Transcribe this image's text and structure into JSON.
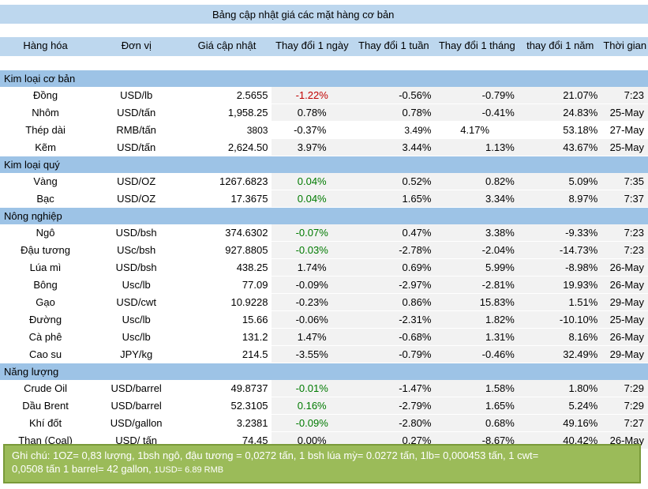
{
  "title": "Bảng cập nhật giá các mặt hàng cơ bản",
  "headers": [
    "Hàng hóa",
    "Đơn vị",
    "Giá cập nhật",
    "Thay đổi 1 ngày",
    "Thay đổi 1 tuần",
    "Thay đổi 1 tháng",
    "thay đổi 1 năm",
    "Thời gian"
  ],
  "sections": [
    {
      "name": "Kim loại cơ bản",
      "rows": [
        [
          "Đồng",
          "USD/lb",
          "2.5655",
          "-1.22%",
          "-0.56%",
          "-0.79%",
          "21.07%",
          "7:23"
        ],
        [
          "Nhôm",
          "USD/tấn",
          "1,958.25",
          "0.78%",
          "0.78%",
          "-0.41%",
          "24.83%",
          "25-May"
        ],
        [
          "Thép dài",
          "RMB/tấn",
          "3803",
          "-0.37%",
          "3.49%",
          "4.17%",
          "53.18%",
          "27-May"
        ],
        [
          "Kẽm",
          "USD/tấn",
          "2,624.50",
          "3.97%",
          "3.44%",
          "1.13%",
          "43.67%",
          "25-May"
        ]
      ]
    },
    {
      "name": "Kim loại quý",
      "rows": [
        [
          "Vàng",
          "USD/OZ",
          "1267.6823",
          "0.04%",
          "0.52%",
          "0.82%",
          "5.09%",
          "7:35"
        ],
        [
          "Bạc",
          "USD/OZ",
          "17.3675",
          "0.04%",
          "1.65%",
          "3.34%",
          "8.97%",
          "7:37"
        ]
      ]
    },
    {
      "name": "Nông nghiệp",
      "rows": [
        [
          "Ngô",
          "USD/bsh",
          "374.6302",
          "-0.07%",
          "0.47%",
          "3.38%",
          "-9.33%",
          "7:23"
        ],
        [
          "Đậu tương",
          "USc/bsh",
          "927.8805",
          "-0.03%",
          "-2.78%",
          "-2.04%",
          "-14.73%",
          "7:23"
        ],
        [
          "Lúa mì",
          "USD/bsh",
          "438.25",
          "1.74%",
          "0.69%",
          "5.99%",
          "-8.98%",
          "26-May"
        ],
        [
          "Bông",
          "Usc/lb",
          "77.09",
          "-0.09%",
          "-2.97%",
          "-2.81%",
          "19.93%",
          "26-May"
        ],
        [
          "Gạo",
          "USD/cwt",
          "10.9228",
          "-0.23%",
          "0.86%",
          "15.83%",
          "1.51%",
          "29-May"
        ],
        [
          "Đường",
          "Usc/lb",
          "15.66",
          "-0.06%",
          "-2.31%",
          "1.82%",
          "-10.10%",
          "25-May"
        ],
        [
          "Cà phê",
          "Usc/lb",
          "131.2",
          "1.47%",
          "-0.68%",
          "1.31%",
          "8.16%",
          "26-May"
        ],
        [
          "Cao su",
          "JPY/kg",
          "214.5",
          "-3.55%",
          "-0.79%",
          "-0.46%",
          "32.49%",
          "29-May"
        ]
      ]
    },
    {
      "name": "Năng lượng",
      "rows": [
        [
          "Crude Oil",
          "USD/barrel",
          "49.8737",
          "-0.01%",
          "-1.47%",
          "1.58%",
          "1.80%",
          "7:29"
        ],
        [
          "Dầu Brent",
          "USD/barrel",
          "52.3105",
          "0.16%",
          "-2.79%",
          "1.65%",
          "5.24%",
          "7:29"
        ],
        [
          "Khí đốt",
          "USD/gallon",
          "3.2381",
          "-0.09%",
          "-2.80%",
          "0.68%",
          "49.16%",
          "7:27"
        ],
        [
          "Than (Coal)",
          "USD/ tấn",
          "74.45",
          "0.00%",
          "0.27%",
          "-8.67%",
          "40.42%",
          "26-May"
        ]
      ]
    }
  ],
  "note": {
    "line1": "Ghi chú: 1OZ= 0,83 lượng,  1bsh ngô, đậu tương = 0,0272 tấn, 1 bsh lúa mỳ=  0.0272 tấn, 1lb= 0,000453 tấn, 1 cwt=",
    "line2_main": "0,0508 tấn 1 barrel= 42 gallon, ",
    "line2_small": "1USD= 6.89 RMB"
  },
  "colors": {
    "title_bg": "#bdd7ee",
    "section_bg": "#9dc3e6",
    "note_bg": "#9bbb59",
    "negative_highlight": "#c00000",
    "positive_highlight": "#007a00"
  }
}
